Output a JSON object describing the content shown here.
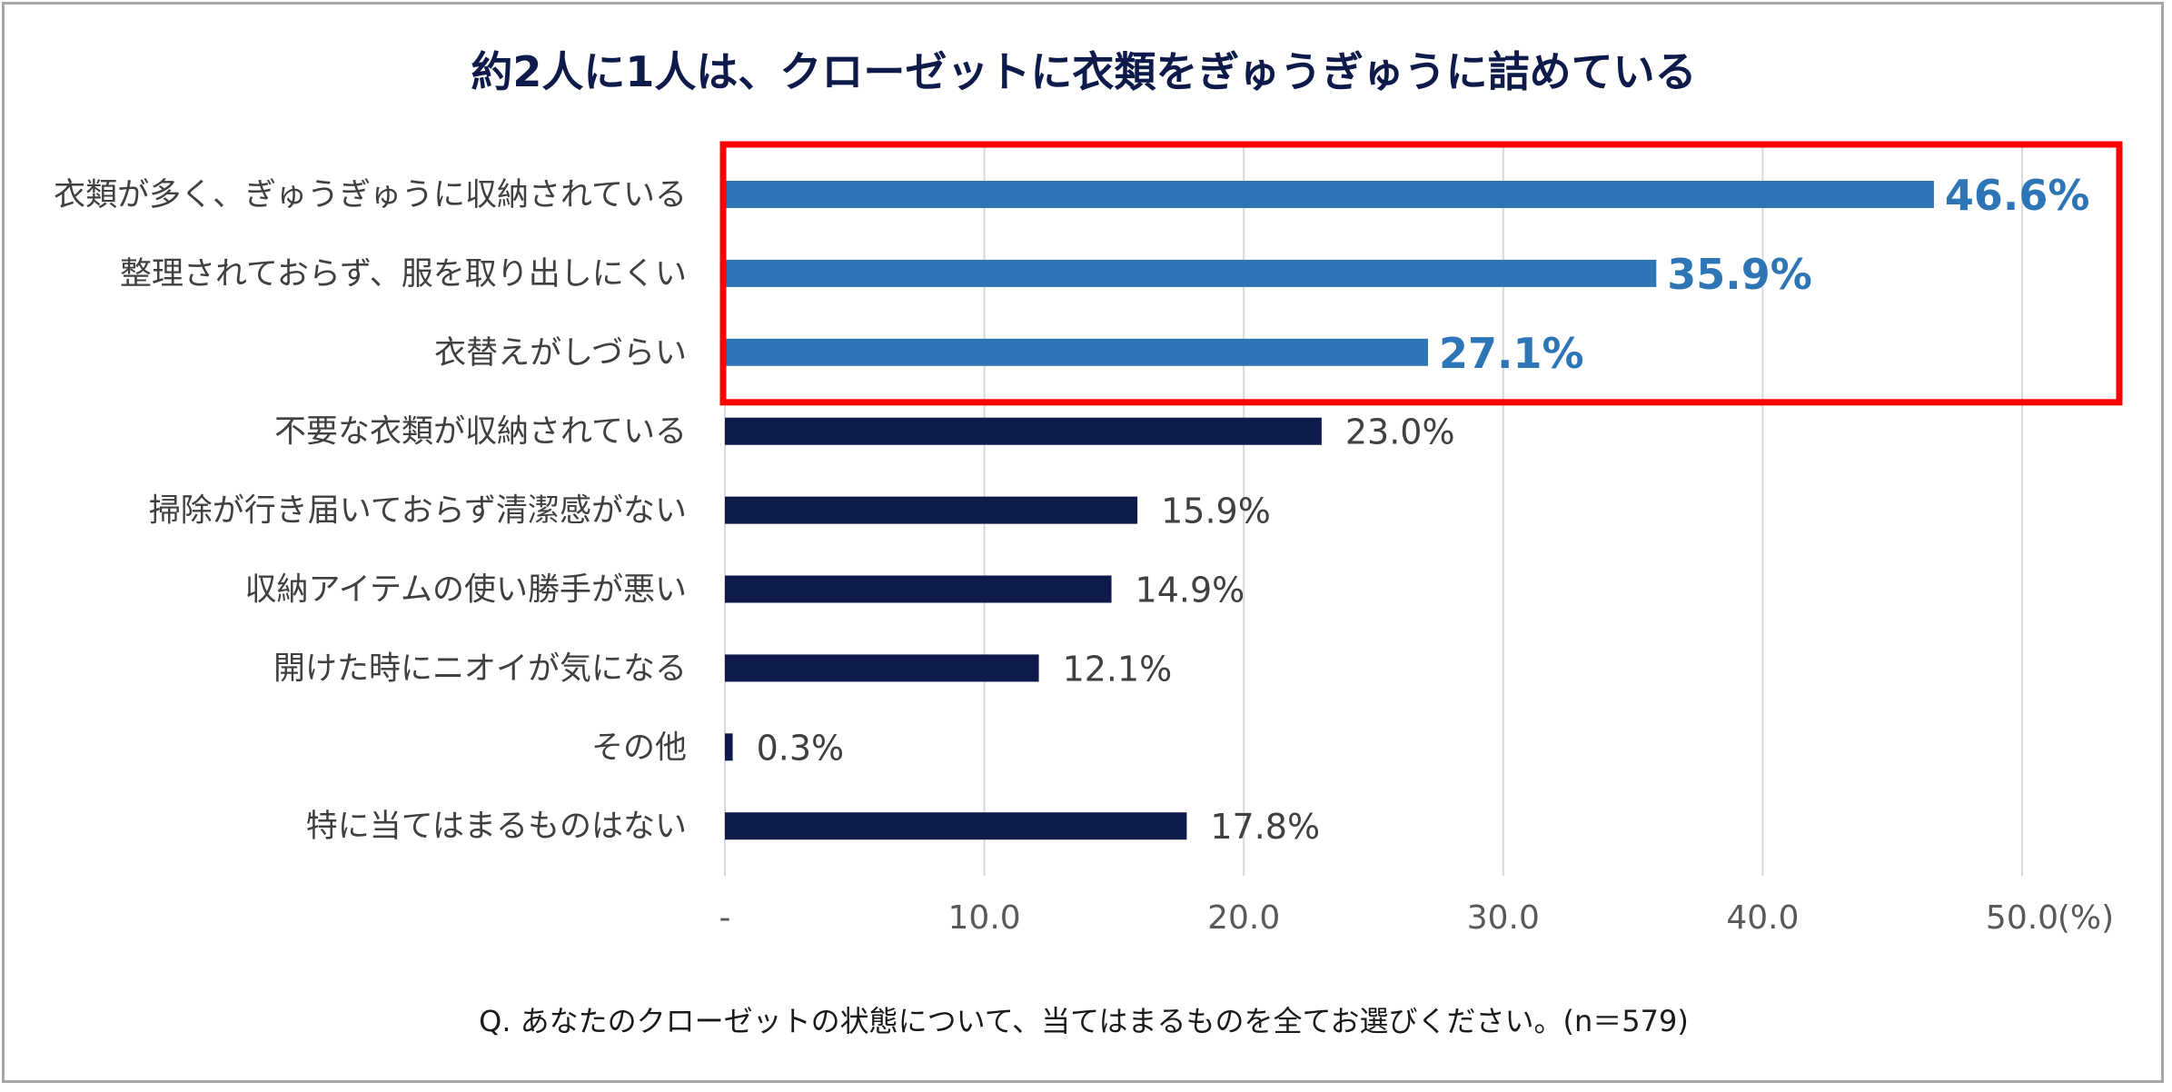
{
  "chart_data": {
    "type": "bar",
    "orientation": "horizontal",
    "title": "約2人に1人は、クローゼットに衣類をぎゅうぎゅうに詰めている",
    "categories": [
      "衣類が多く、ぎゅうぎゅうに収納されている",
      "整理されておらず、服を取り出しにくい",
      "衣替えがしづらい",
      "不要な衣類が収納されている",
      "掃除が行き届いておらず清潔感がない",
      "収納アイテムの使い勝手が悪い",
      "開けた時にニオイが気になる",
      "その他",
      "特に当てはまるものはない"
    ],
    "values": [
      46.6,
      35.9,
      27.1,
      23.0,
      15.9,
      14.9,
      12.1,
      0.3,
      17.8
    ],
    "value_labels": [
      "46.6%",
      "35.9%",
      "27.1%",
      "23.0%",
      "15.9%",
      "14.9%",
      "12.1%",
      "0.3%",
      "17.8%"
    ],
    "highlighted": [
      true,
      true,
      true,
      false,
      false,
      false,
      false,
      false,
      false
    ],
    "xlim": [
      0,
      50
    ],
    "xticks": [
      "-",
      "10.0",
      "20.0",
      "30.0",
      "40.0",
      "50.0"
    ],
    "xunit": "(%)",
    "grid": true,
    "legend": "none",
    "colors": {
      "highlight_bar": "#2e75b6",
      "bar": "#0d1a4a",
      "highlight_box": "#ff0000",
      "grid": "#d9d9d9",
      "title": "#0d1a4a"
    }
  },
  "caption": "Q. あなたのクローゼットの状態について、当てはまるものを全てお選びください。(n＝579)"
}
